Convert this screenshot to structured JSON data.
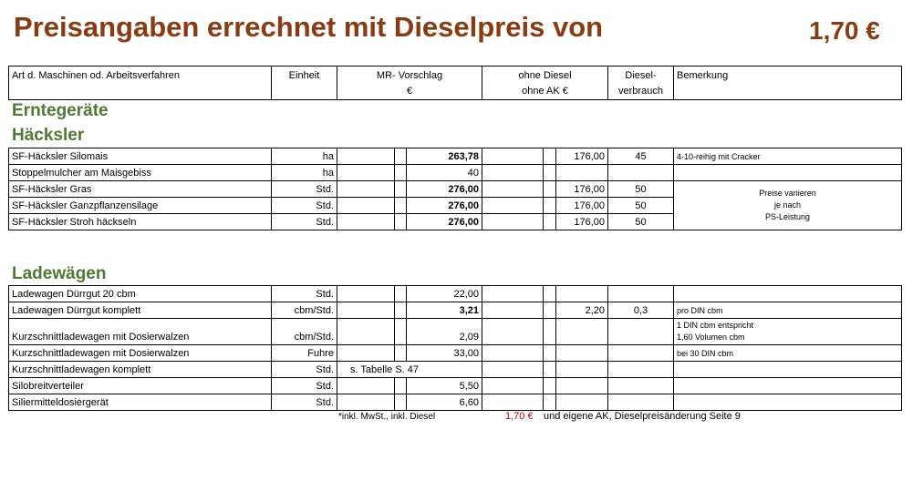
{
  "title": "Preisangaben errechnet mit Dieselpreis von",
  "diesel_price": "1,70 €",
  "header": {
    "art": "Art d. Maschinen od. Arbeitsverfahren",
    "einheit": "Einheit",
    "mr_line1": "MR- Vorschlag",
    "mr_line2": "€",
    "ohne_line1": "ohne Diesel",
    "ohne_line2": "ohne AK €",
    "diesel_line1": "Diesel-",
    "diesel_line2": "verbrauch",
    "bemerkung": "Bemerkung"
  },
  "sections": {
    "erntegeraete": "Erntegeräte",
    "haecksler": "Häcksler",
    "ladewaegen": "Ladewägen"
  },
  "haecksler_rows": [
    {
      "name": "SF-Häcksler Silomais",
      "unit": "ha",
      "price": "263,78",
      "ohne": "176,00",
      "diesel": "45",
      "note": "4-10-reihig mit Cracker"
    },
    {
      "name": "Stoppelmulcher am Maisgebiss",
      "unit": "ha",
      "price": "40",
      "ohne": "",
      "diesel": "",
      "note": ""
    },
    {
      "name": "SF-Häcksler Gras",
      "unit": "Std.",
      "price": "276,00",
      "ohne": "176,00",
      "diesel": "50"
    },
    {
      "name": "SF-Häcksler Ganzpflanzensilage",
      "unit": "Std.",
      "price": "276,00",
      "ohne": "176,00",
      "diesel": "50"
    },
    {
      "name": "SF-Häcksler Stroh häckseln",
      "unit": "Std.",
      "price": "276,00",
      "ohne": "176,00",
      "diesel": "50"
    }
  ],
  "haecksler_note": [
    "Preise variieren",
    "je nach",
    "PS-Leistung"
  ],
  "lade_rows": [
    {
      "name": "Ladewagen Dürrgut 20 cbm",
      "unit": "Std.",
      "price": "22,00",
      "ohne": "",
      "diesel": "",
      "note": ""
    },
    {
      "name": "Ladewagen Dürrgut komplett",
      "unit": "cbm/Std.",
      "price": "3,21",
      "ohne": "2,20",
      "diesel": "0,3",
      "note": "pro DIN cbm"
    },
    {
      "name": "Kurzschnittladewagen mit Dosierwalzen",
      "unit": "cbm/Std.",
      "price": "2,09",
      "ohne": "",
      "diesel": "",
      "note_lines": [
        "1 DIN cbm entspricht",
        "1,60 Volumen cbm"
      ]
    },
    {
      "name": "Kurzschnittladewagen mit Dosierwalzen",
      "unit": "Fuhre",
      "price": "33,00",
      "ohne": "",
      "diesel": "",
      "note": "bei 30 DIN cbm"
    },
    {
      "name": "Kurzschnittladewagen komplett",
      "unit": "Std.",
      "price_text": "s. Tabelle S. 47"
    },
    {
      "name": "Silobreitverteiler",
      "unit": "Std.",
      "price": "5,50",
      "ohne": "",
      "diesel": "",
      "note": ""
    },
    {
      "name": "Siliermitteldosiergerät",
      "unit": "Std.",
      "price": "6,60",
      "ohne": "",
      "diesel": "",
      "note": ""
    }
  ],
  "footer": {
    "left": "*inkl. MwSt., inkl. Diesel",
    "price": "1,70 €",
    "right": "und eigene AK, Dieselpreisänderung Seite 9"
  }
}
